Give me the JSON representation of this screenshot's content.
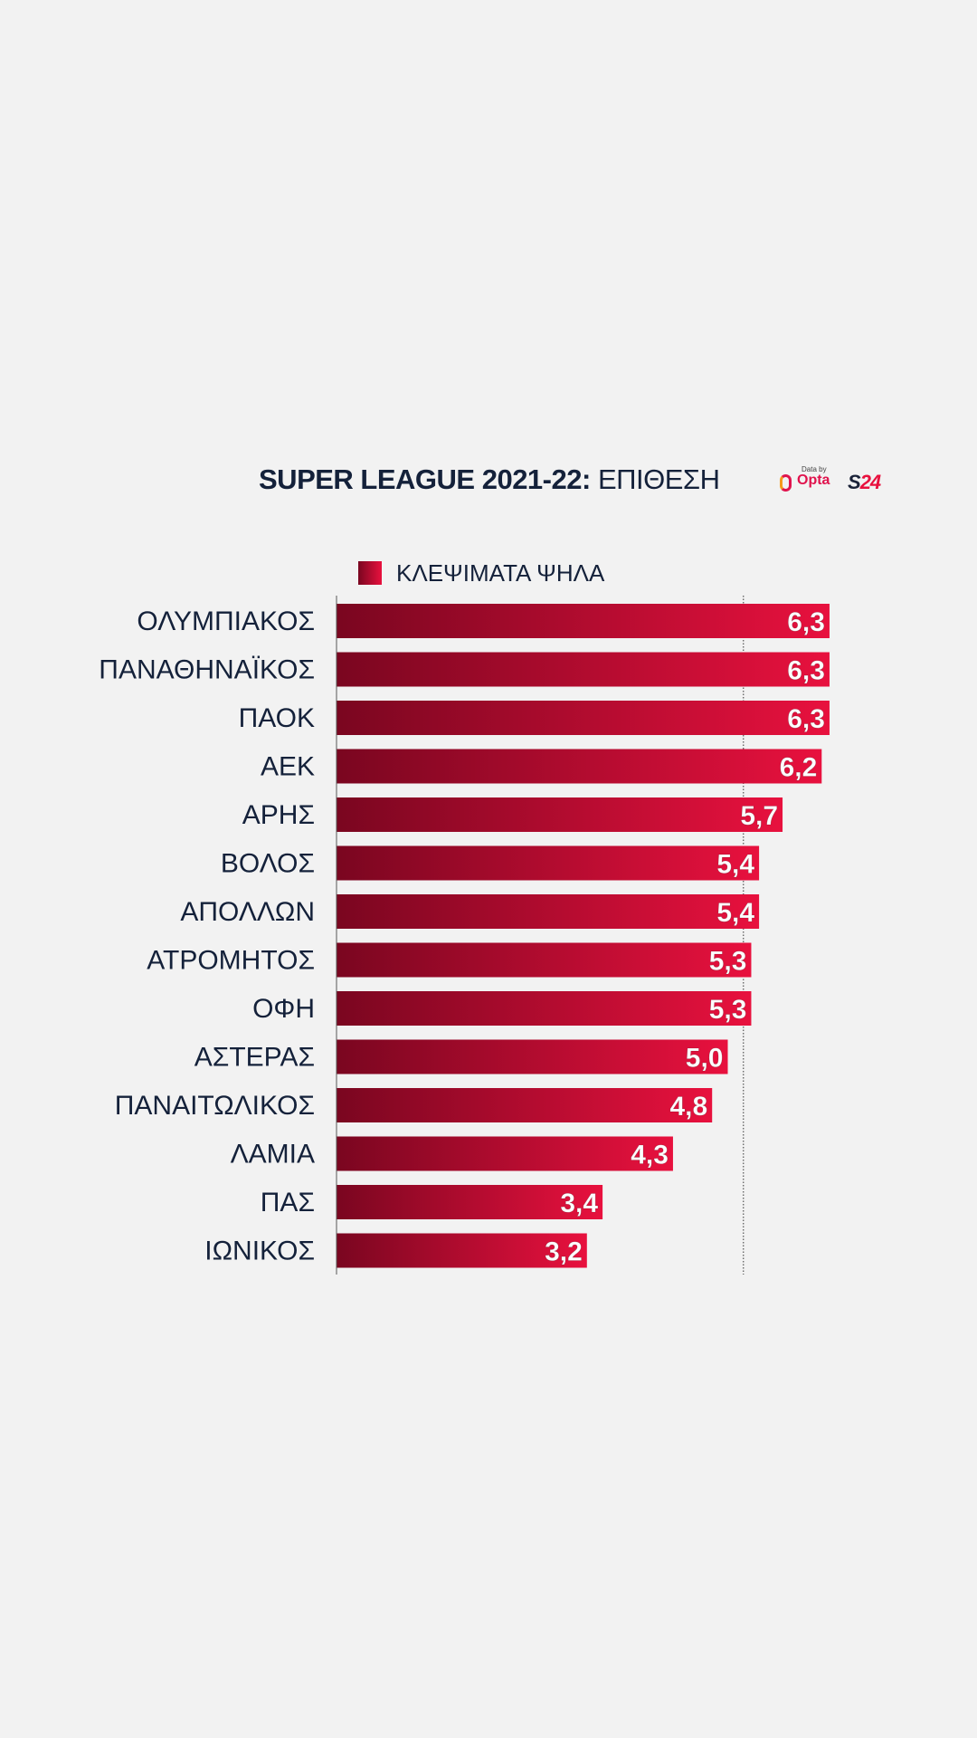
{
  "header": {
    "title_bold": "SUPER LEAGUE 2021-22:",
    "title_light": "ΕΠΙΘΕΣΗ",
    "opta_small": "Data by",
    "opta_word": "Opta",
    "s24_s": "S",
    "s24_num": "24"
  },
  "colors": {
    "bar_start": "#7a0620",
    "bar_end": "#e8113e",
    "text": "#14213a"
  },
  "chart_data": {
    "type": "bar",
    "orientation": "horizontal",
    "title": "SUPER LEAGUE 2021-22: ΕΠΙΘΕΣΗ",
    "legend": [
      "ΚΛΕΨΙΜΑΤΑ ΨΗΛΑ"
    ],
    "categories": [
      "ΟΛΥΜΠΙΑΚΟΣ",
      "ΠΑΝΑΘΗΝΑΪΚΟΣ",
      "ΠΑΟΚ",
      "ΑΕΚ",
      "ΑΡΗΣ",
      "ΒΟΛΟΣ",
      "ΑΠΟΛΛΩΝ",
      "ΑΤΡΟΜΗΤΟΣ",
      "ΟΦΗ",
      "ΑΣΤΕΡΑΣ",
      "ΠΑΝΑΙΤΩΛΙΚΟΣ",
      "ΛΑΜΙΑ",
      "ΠΑΣ",
      "ΙΩΝΙΚΟΣ"
    ],
    "values": [
      6.3,
      6.3,
      6.3,
      6.2,
      5.7,
      5.4,
      5.4,
      5.3,
      5.3,
      5.0,
      4.8,
      4.3,
      3.4,
      3.2
    ],
    "value_labels": [
      "6,3",
      "6,3",
      "6,3",
      "6,2",
      "5,7",
      "5,4",
      "5,4",
      "5,3",
      "5,3",
      "5,0",
      "4,8",
      "4,3",
      "3,4",
      "3,2"
    ],
    "reference_line": 5.2,
    "xlim": [
      0,
      7.5
    ]
  }
}
